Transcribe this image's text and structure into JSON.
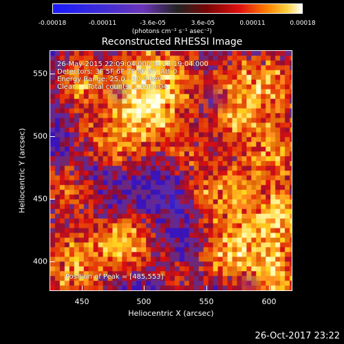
{
  "colorbar": {
    "tick_labels": [
      "-0.00018",
      "-0.00011",
      "-3.6e-05",
      "3.6e-05",
      "0.00011",
      "0.00018"
    ],
    "units": "(photons cm⁻² s⁻¹ asec⁻²)",
    "range": [
      -0.00018,
      0.00018
    ]
  },
  "title": "Reconstructed RHESSI Image",
  "annotations": {
    "time_range": "26-May-2015 22:09:04.000 to 22:19:04.000",
    "detectors": "Detectors: 3F 5F 6F 7F 8F 9F, Att 0",
    "energy": "Energy Range: 25.0 - 50.0 keV",
    "clean": "Clean     Total counts: 1.35E+04",
    "peak": "Position of Peak = [485,553]"
  },
  "axes": {
    "xlabel": "Heliocentric X (arcsec)",
    "ylabel": "Heliocentric Y (arcsec)",
    "xticks": [
      "450",
      "500",
      "550",
      "600"
    ],
    "yticks": [
      "400",
      "450",
      "500",
      "550"
    ],
    "xrange": [
      425,
      620
    ],
    "yrange": [
      375,
      570
    ]
  },
  "timestamp": "26-Oct-2017 23:22"
}
